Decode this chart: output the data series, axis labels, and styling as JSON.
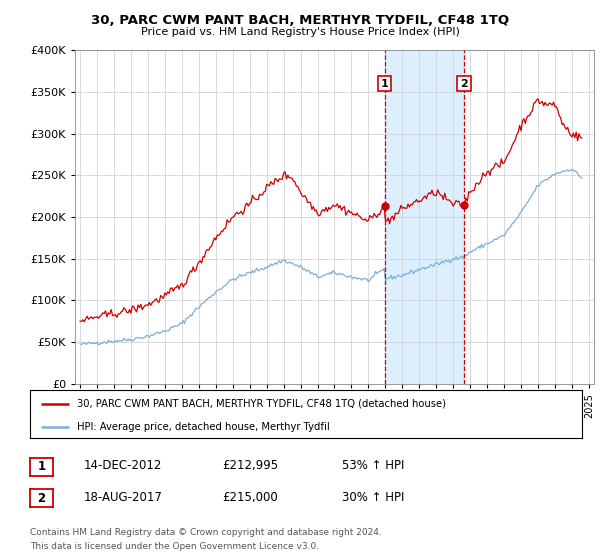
{
  "title": "30, PARC CWM PANT BACH, MERTHYR TYDFIL, CF48 1TQ",
  "subtitle": "Price paid vs. HM Land Registry's House Price Index (HPI)",
  "legend_line1": "30, PARC CWM PANT BACH, MERTHYR TYDFIL, CF48 1TQ (detached house)",
  "legend_line2": "HPI: Average price, detached house, Merthyr Tydfil",
  "footnote1": "Contains HM Land Registry data © Crown copyright and database right 2024.",
  "footnote2": "This data is licensed under the Open Government Licence v3.0.",
  "table": [
    {
      "label": "1",
      "date": "14-DEC-2012",
      "price": "£212,995",
      "change": "53% ↑ HPI"
    },
    {
      "label": "2",
      "date": "18-AUG-2017",
      "price": "£215,000",
      "change": "30% ↑ HPI"
    }
  ],
  "marker1_year": 2012.96,
  "marker2_year": 2017.63,
  "marker1_price": 212995,
  "marker2_price": 215000,
  "red_color": "#cc0000",
  "blue_color": "#7ab0d4",
  "shade_color": "#ddeeff",
  "ylim": [
    0,
    400000
  ],
  "xlim_start": 1994.7,
  "xlim_end": 2025.3,
  "yticks": [
    0,
    50000,
    100000,
    150000,
    200000,
    250000,
    300000,
    350000,
    400000
  ],
  "xticks": [
    1995,
    1996,
    1997,
    1998,
    1999,
    2000,
    2001,
    2002,
    2003,
    2004,
    2005,
    2006,
    2007,
    2008,
    2009,
    2010,
    2011,
    2012,
    2013,
    2014,
    2015,
    2016,
    2017,
    2018,
    2019,
    2020,
    2021,
    2022,
    2023,
    2024,
    2025
  ],
  "hpi_waypoints": [
    [
      1995.0,
      47000
    ],
    [
      1996.0,
      49000
    ],
    [
      1997.0,
      51000
    ],
    [
      1998.0,
      53000
    ],
    [
      1999.0,
      57000
    ],
    [
      2000.0,
      63000
    ],
    [
      2001.0,
      72000
    ],
    [
      2002.0,
      92000
    ],
    [
      2003.0,
      110000
    ],
    [
      2004.0,
      125000
    ],
    [
      2005.0,
      133000
    ],
    [
      2006.0,
      140000
    ],
    [
      2007.0,
      148000
    ],
    [
      2008.0,
      140000
    ],
    [
      2009.0,
      128000
    ],
    [
      2010.0,
      133000
    ],
    [
      2011.0,
      128000
    ],
    [
      2012.0,
      124000
    ],
    [
      2012.96,
      138000
    ],
    [
      2013.0,
      126000
    ],
    [
      2014.0,
      130000
    ],
    [
      2015.0,
      137000
    ],
    [
      2016.0,
      143000
    ],
    [
      2017.0,
      150000
    ],
    [
      2017.63,
      152000
    ],
    [
      2018.0,
      158000
    ],
    [
      2019.0,
      168000
    ],
    [
      2020.0,
      178000
    ],
    [
      2021.0,
      205000
    ],
    [
      2022.0,
      238000
    ],
    [
      2023.0,
      252000
    ],
    [
      2024.0,
      258000
    ],
    [
      2024.5,
      248000
    ]
  ],
  "red_waypoints": [
    [
      1995.0,
      75000
    ],
    [
      1996.0,
      80000
    ],
    [
      1997.0,
      84000
    ],
    [
      1998.0,
      88000
    ],
    [
      1999.0,
      95000
    ],
    [
      2000.0,
      105000
    ],
    [
      2001.0,
      118000
    ],
    [
      2002.0,
      145000
    ],
    [
      2003.0,
      175000
    ],
    [
      2004.0,
      200000
    ],
    [
      2005.0,
      215000
    ],
    [
      2006.0,
      235000
    ],
    [
      2007.0,
      250000
    ],
    [
      2007.5,
      248000
    ],
    [
      2008.0,
      230000
    ],
    [
      2009.0,
      205000
    ],
    [
      2010.0,
      215000
    ],
    [
      2011.0,
      205000
    ],
    [
      2012.0,
      195000
    ],
    [
      2012.96,
      213000
    ],
    [
      2013.0,
      195000
    ],
    [
      2013.5,
      200000
    ],
    [
      2014.0,
      210000
    ],
    [
      2015.0,
      220000
    ],
    [
      2016.0,
      230000
    ],
    [
      2017.0,
      215000
    ],
    [
      2017.63,
      215000
    ],
    [
      2018.0,
      230000
    ],
    [
      2019.0,
      255000
    ],
    [
      2020.0,
      265000
    ],
    [
      2021.0,
      310000
    ],
    [
      2022.0,
      340000
    ],
    [
      2022.5,
      335000
    ],
    [
      2023.0,
      335000
    ],
    [
      2023.5,
      310000
    ],
    [
      2024.0,
      300000
    ],
    [
      2024.5,
      295000
    ]
  ]
}
